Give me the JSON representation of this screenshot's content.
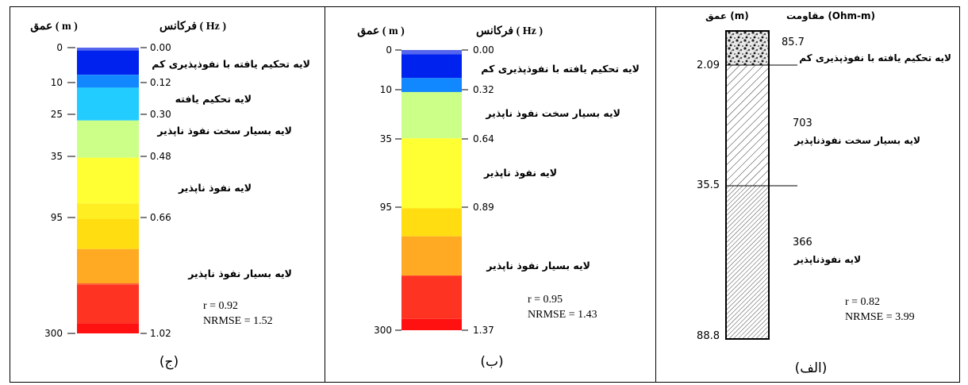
{
  "panel_c": {
    "depth_header": "عمق ( m )",
    "freq_header": "فرکانس ( Hz )",
    "depth_ticks": [
      "0",
      "10",
      "25",
      "35",
      "95",
      "300"
    ],
    "freq_ticks": [
      "0.00",
      "0.12",
      "0.30",
      "0.48",
      "0.66",
      "1.02"
    ],
    "layers": [
      "لایه تحکیم یافته با نفوذپذیری کم",
      "لایه تحکیم یافته",
      "لایه بسیار سخت نفوذ ناپذیر",
      "لایه نفوذ ناپذیر",
      "لایه بسیار نفوذ ناپذیر"
    ],
    "r": "r = 0.92",
    "nrmse": "NRMSE = 1.52",
    "caption": "(ج)",
    "segments": [
      {
        "from": 0.0,
        "to": 0.01,
        "color": "#5566ee"
      },
      {
        "from": 0.01,
        "to": 0.095,
        "color": "#0022ee"
      },
      {
        "from": 0.095,
        "to": 0.14,
        "color": "#1188ff"
      },
      {
        "from": 0.14,
        "to": 0.255,
        "color": "#22ccff"
      },
      {
        "from": 0.255,
        "to": 0.385,
        "color": "#ccff88"
      },
      {
        "from": 0.385,
        "to": 0.545,
        "color": "#ffff33"
      },
      {
        "from": 0.545,
        "to": 0.6,
        "color": "#ffee22"
      },
      {
        "from": 0.6,
        "to": 0.705,
        "color": "#ffdd11"
      },
      {
        "from": 0.705,
        "to": 0.825,
        "color": "#ffaa22"
      },
      {
        "from": 0.825,
        "to": 0.83,
        "color": "#ff5533"
      },
      {
        "from": 0.83,
        "to": 0.965,
        "color": "#ff3322"
      },
      {
        "from": 0.965,
        "to": 1.0,
        "color": "#ff1111"
      }
    ]
  },
  "panel_b": {
    "depth_header": "عمق ( m )",
    "freq_header": "فرکانس ( Hz )",
    "depth_ticks": [
      "0",
      "10",
      "35",
      "95",
      "300"
    ],
    "freq_ticks": [
      "0.00",
      "0.32",
      "0.64",
      "0.89",
      "1.37"
    ],
    "layers": [
      "لایه تحکیم یافته با نفوذپذیری کم",
      "لایه بسیار سخت نفوذ ناپذیر",
      "لایه نفوذ ناپذیر",
      "لایه بسیار نفوذ ناپذیر"
    ],
    "r": "r = 0.95",
    "nrmse": "NRMSE = 1.43",
    "caption": "(ب)",
    "segments": [
      {
        "from": 0.0,
        "to": 0.015,
        "color": "#5566ee"
      },
      {
        "from": 0.015,
        "to": 0.1,
        "color": "#0022ee"
      },
      {
        "from": 0.1,
        "to": 0.15,
        "color": "#1188ff"
      },
      {
        "from": 0.15,
        "to": 0.315,
        "color": "#ccff88"
      },
      {
        "from": 0.315,
        "to": 0.565,
        "color": "#ffff33"
      },
      {
        "from": 0.565,
        "to": 0.665,
        "color": "#ffdd11"
      },
      {
        "from": 0.665,
        "to": 0.805,
        "color": "#ffaa22"
      },
      {
        "from": 0.805,
        "to": 0.96,
        "color": "#ff3322"
      },
      {
        "from": 0.96,
        "to": 1.0,
        "color": "#ff1111"
      }
    ]
  },
  "panel_a": {
    "depth_header": "عمق  (m)",
    "res_header": "مقاومت  (Ohm-m)",
    "depth_ticks": [
      "2.09",
      "35.5",
      "88.8"
    ],
    "resistivities": [
      "85.7",
      "703",
      "366"
    ],
    "layers": [
      "لایه تحکیم یافته با نفوذپذیری کم",
      "لایه بسیار سخت نفوذناپذیر",
      "لایه نفوذناپذیر"
    ],
    "r": "r = 0.82",
    "nrmse": "NRMSE = 3.99",
    "caption": "(الف)"
  }
}
